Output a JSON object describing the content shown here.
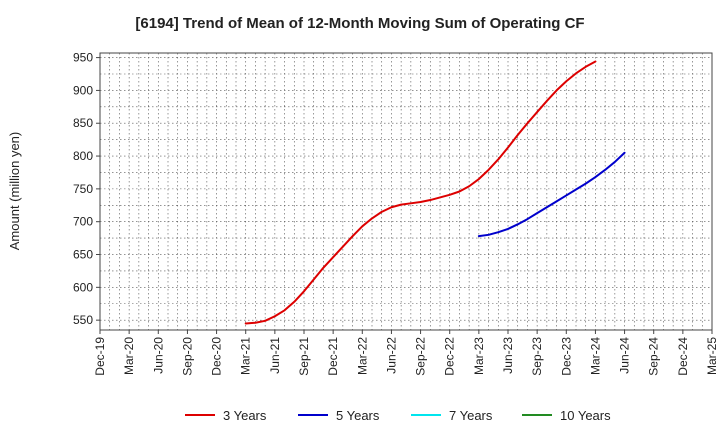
{
  "chart_data": {
    "type": "line",
    "title": "[6194]  Trend of Mean of 12-Month Moving Sum of Operating CF",
    "xlabel": "",
    "ylabel": "Amount (million yen)",
    "ylim": [
      535,
      957
    ],
    "yticks": [
      550,
      600,
      650,
      700,
      750,
      800,
      850,
      900,
      950
    ],
    "grid": true,
    "legend_position": "bottom",
    "categories": [
      "Dec-19",
      "Mar-20",
      "Jun-20",
      "Sep-20",
      "Dec-20",
      "Mar-21",
      "Jun-21",
      "Sep-21",
      "Dec-21",
      "Mar-22",
      "Jun-22",
      "Sep-22",
      "Dec-22",
      "Mar-23",
      "Jun-23",
      "Sep-23",
      "Dec-23",
      "Mar-24",
      "Jun-24",
      "Sep-24",
      "Dec-24",
      "Mar-25"
    ],
    "series": [
      {
        "name": "3 Years",
        "color": "#dd0000",
        "points": [
          {
            "month": 15,
            "value": 545
          },
          {
            "month": 16,
            "value": 546
          },
          {
            "month": 17,
            "value": 549
          },
          {
            "month": 18,
            "value": 556
          },
          {
            "month": 19,
            "value": 565
          },
          {
            "month": 20,
            "value": 578
          },
          {
            "month": 21,
            "value": 594
          },
          {
            "month": 22,
            "value": 612
          },
          {
            "month": 23,
            "value": 630
          },
          {
            "month": 24,
            "value": 646
          },
          {
            "month": 25,
            "value": 662
          },
          {
            "month": 26,
            "value": 678
          },
          {
            "month": 27,
            "value": 693
          },
          {
            "month": 28,
            "value": 705
          },
          {
            "month": 29,
            "value": 715
          },
          {
            "month": 30,
            "value": 722
          },
          {
            "month": 31,
            "value": 726
          },
          {
            "month": 32,
            "value": 728
          },
          {
            "month": 33,
            "value": 730
          },
          {
            "month": 34,
            "value": 733
          },
          {
            "month": 35,
            "value": 737
          },
          {
            "month": 36,
            "value": 741
          },
          {
            "month": 37,
            "value": 746
          },
          {
            "month": 38,
            "value": 754
          },
          {
            "month": 39,
            "value": 765
          },
          {
            "month": 40,
            "value": 779
          },
          {
            "month": 41,
            "value": 795
          },
          {
            "month": 42,
            "value": 813
          },
          {
            "month": 43,
            "value": 832
          },
          {
            "month": 44,
            "value": 850
          },
          {
            "month": 45,
            "value": 867
          },
          {
            "month": 46,
            "value": 884
          },
          {
            "month": 47,
            "value": 900
          },
          {
            "month": 48,
            "value": 914
          },
          {
            "month": 49,
            "value": 926
          },
          {
            "month": 50,
            "value": 936
          },
          {
            "month": 51,
            "value": 944
          }
        ]
      },
      {
        "name": "5 Years",
        "color": "#0000cc",
        "points": [
          {
            "month": 39,
            "value": 678
          },
          {
            "month": 40,
            "value": 680
          },
          {
            "month": 41,
            "value": 684
          },
          {
            "month": 42,
            "value": 689
          },
          {
            "month": 43,
            "value": 696
          },
          {
            "month": 44,
            "value": 704
          },
          {
            "month": 45,
            "value": 713
          },
          {
            "month": 46,
            "value": 722
          },
          {
            "month": 47,
            "value": 731
          },
          {
            "month": 48,
            "value": 740
          },
          {
            "month": 49,
            "value": 749
          },
          {
            "month": 50,
            "value": 758
          },
          {
            "month": 51,
            "value": 768
          },
          {
            "month": 52,
            "value": 779
          },
          {
            "month": 53,
            "value": 791
          },
          {
            "month": 54,
            "value": 805
          }
        ]
      },
      {
        "name": "7 Years",
        "color": "#00e5ee",
        "points": []
      },
      {
        "name": "10 Years",
        "color": "#228b22",
        "points": []
      }
    ]
  }
}
